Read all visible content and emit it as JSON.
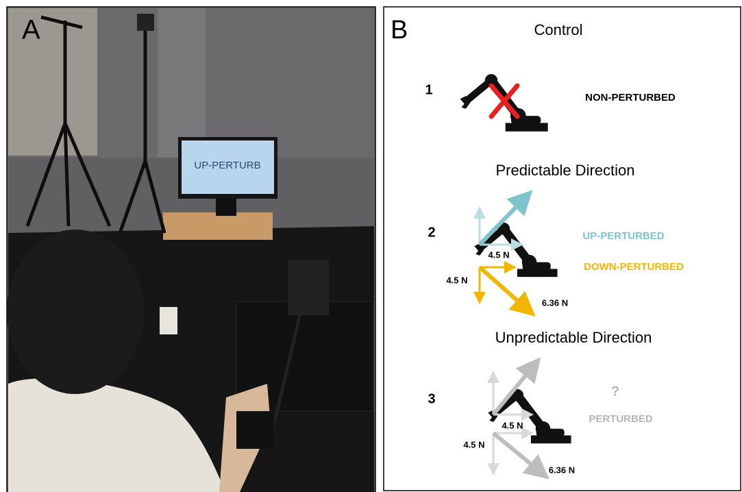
{
  "panel_a": {
    "label": "A",
    "monitor_text": "UP-PERTURB"
  },
  "panel_b": {
    "label": "B",
    "sections": [
      {
        "heading": "Control",
        "number": "1",
        "conditions": [
          "NON-PERTURBED"
        ]
      },
      {
        "heading": "Predictable Direction",
        "number": "2",
        "conditions": [
          "UP-PERTURBED",
          "DOWN-PERTURBED"
        ],
        "forces": [
          "4.5 N",
          "4.5 N",
          "6.36 N"
        ]
      },
      {
        "heading": "Unpredictable Direction",
        "number": "3",
        "symbol": "?",
        "conditions": [
          "PERTURBED"
        ],
        "forces": [
          "4.5 N",
          "4.5 N",
          "6.36 N"
        ]
      }
    ]
  }
}
